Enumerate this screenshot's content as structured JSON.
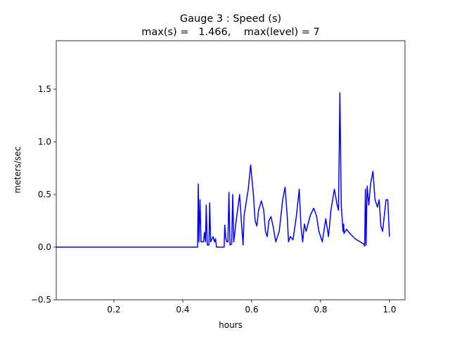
{
  "chart_data": {
    "type": "line",
    "title": "Gauge 3 : Speed (s)",
    "subtitle": "max(s) =   1.466,    max(level) = 7",
    "x_label": "hours",
    "y_label": "meters/sec",
    "xlim": [
      0.0327,
      1.045
    ],
    "ylim": [
      -0.5,
      1.96
    ],
    "xticks": [
      0.2,
      0.4,
      0.6,
      0.8,
      {
        "value": 1,
        "label": "1.0"
      }
    ],
    "yticks": [
      {
        "value": -0.5,
        "label": "−0.5"
      },
      {
        "value": 0,
        "label": "0.0"
      },
      0.5,
      {
        "value": 1,
        "label": "1.0"
      },
      1.5
    ],
    "series": [
      {
        "name": "s",
        "color": "#0000ff",
        "x": [
          0.033,
          0.443,
          0.445,
          0.447,
          0.45,
          0.453,
          0.46,
          0.463,
          0.466,
          0.468,
          0.471,
          0.476,
          0.478,
          0.481,
          0.488,
          0.492,
          0.495,
          0.498,
          0.52,
          0.522,
          0.525,
          0.528,
          0.531,
          0.534,
          0.537,
          0.542,
          0.545,
          0.548,
          0.555,
          0.565,
          0.57,
          0.575,
          0.578,
          0.59,
          0.597,
          0.605,
          0.61,
          0.615,
          0.62,
          0.628,
          0.635,
          0.64,
          0.645,
          0.65,
          0.656,
          0.662,
          0.67,
          0.68,
          0.69,
          0.697,
          0.703,
          0.707,
          0.712,
          0.72,
          0.73,
          0.738,
          0.743,
          0.748,
          0.753,
          0.758,
          0.77,
          0.78,
          0.788,
          0.795,
          0.805,
          0.815,
          0.823,
          0.83,
          0.84,
          0.848,
          0.852,
          0.856,
          0.86,
          0.865,
          0.867,
          0.868,
          0.875,
          0.885,
          0.9,
          0.915,
          0.925,
          0.928,
          0.93,
          0.932,
          0.935,
          0.94,
          0.945,
          0.952,
          0.958,
          0.965,
          0.97,
          0.975,
          0.98,
          0.99,
          0.995,
          1.0
        ],
        "values": [
          0,
          0,
          0.6,
          0.05,
          0.45,
          0.05,
          0.05,
          0.14,
          0.05,
          0.4,
          0.02,
          0.02,
          0.42,
          0.05,
          0.1,
          0.05,
          0.08,
          0,
          0,
          0.21,
          0.08,
          0.05,
          0.05,
          0.52,
          0.02,
          0.03,
          0.5,
          0.05,
          0.25,
          0.5,
          0.25,
          0.02,
          0.3,
          0.55,
          0.78,
          0.5,
          0.25,
          0.2,
          0.35,
          0.44,
          0.35,
          0.15,
          0.1,
          0.25,
          0.29,
          0.2,
          0.05,
          0.15,
          0.45,
          0.57,
          0.3,
          0.05,
          0.1,
          0.07,
          0.3,
          0.55,
          0.2,
          0.05,
          0.22,
          0.15,
          0.3,
          0.37,
          0.3,
          0.15,
          0.05,
          0.27,
          0.1,
          0.35,
          0.55,
          0.4,
          0.35,
          1.466,
          0.4,
          0.15,
          0.22,
          0.13,
          0.17,
          0.13,
          0.08,
          0.05,
          0.03,
          0.01,
          0.55,
          0.02,
          0.58,
          0.4,
          0.6,
          0.72,
          0.45,
          0.38,
          0.45,
          0.2,
          0.15,
          0.45,
          0.45,
          0.1
        ]
      }
    ]
  }
}
